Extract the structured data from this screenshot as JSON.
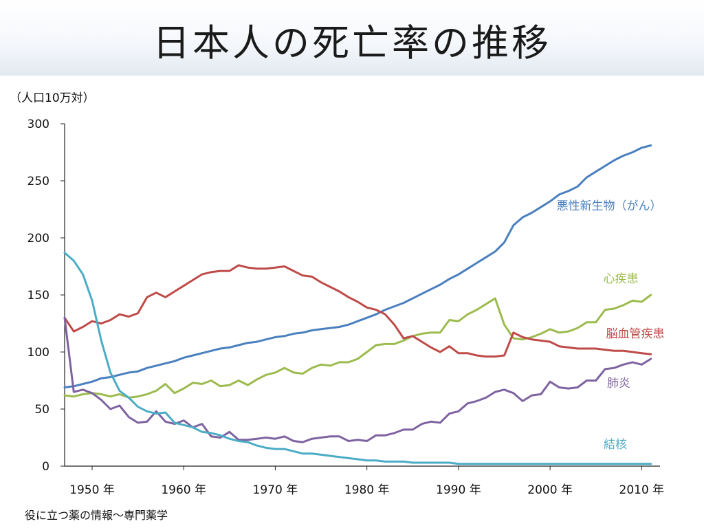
{
  "title": "日本人の死亡率の推移",
  "unit_label": "（人口10万対）",
  "source": "役に立つ薬の情報～専門薬学",
  "chart_data": {
    "type": "line",
    "title": "日本人の死亡率の推移",
    "ylabel": "（人口10万対）",
    "xlabel": "",
    "xlim": [
      1947,
      2012
    ],
    "ylim": [
      0,
      300
    ],
    "grid": false,
    "y_ticks": [
      "0",
      "50",
      "100",
      "150",
      "200",
      "250",
      "300"
    ],
    "x_ticks": [
      {
        "year": 1950,
        "label": "1950 年"
      },
      {
        "year": 1960,
        "label": "1960 年"
      },
      {
        "year": 1970,
        "label": "1970 年"
      },
      {
        "year": 1980,
        "label": "1980 年"
      },
      {
        "year": 1990,
        "label": "1990 年"
      },
      {
        "year": 2000,
        "label": "2000 年"
      },
      {
        "year": 2010,
        "label": "2010 年"
      }
    ],
    "x": [
      1947,
      1948,
      1949,
      1950,
      1951,
      1952,
      1953,
      1954,
      1955,
      1956,
      1957,
      1958,
      1959,
      1960,
      1961,
      1962,
      1963,
      1964,
      1965,
      1966,
      1967,
      1968,
      1969,
      1970,
      1971,
      1972,
      1973,
      1974,
      1975,
      1976,
      1977,
      1978,
      1979,
      1980,
      1981,
      1982,
      1983,
      1984,
      1985,
      1986,
      1987,
      1988,
      1989,
      1990,
      1991,
      1992,
      1993,
      1994,
      1995,
      1996,
      1997,
      1998,
      1999,
      2000,
      2001,
      2002,
      2003,
      2004,
      2005,
      2006,
      2007,
      2008,
      2009,
      2010,
      2011
    ],
    "series": [
      {
        "name": "悪性新生物（がん）",
        "color": "#4a7fbf",
        "values": [
          69,
          70,
          72,
          74,
          77,
          78,
          80,
          82,
          83,
          86,
          88,
          90,
          92,
          95,
          97,
          99,
          101,
          103,
          104,
          106,
          108,
          109,
          111,
          113,
          114,
          116,
          117,
          119,
          120,
          121,
          122,
          124,
          127,
          130,
          133,
          137,
          140,
          143,
          147,
          151,
          155,
          159,
          164,
          168,
          173,
          178,
          183,
          188,
          196,
          211,
          218,
          222,
          227,
          232,
          238,
          241,
          245,
          253,
          258,
          263,
          268,
          272,
          275,
          279,
          281
        ]
      },
      {
        "name": "心疾患",
        "color": "#9cbb4e",
        "values": [
          62,
          61,
          63,
          64,
          63,
          61,
          63,
          60,
          61,
          63,
          66,
          72,
          64,
          68,
          73,
          72,
          75,
          70,
          71,
          75,
          71,
          76,
          80,
          82,
          86,
          82,
          81,
          86,
          89,
          88,
          91,
          91,
          94,
          100,
          106,
          107,
          107,
          110,
          114,
          116,
          117,
          117,
          128,
          127,
          133,
          137,
          142,
          147,
          124,
          112,
          111,
          113,
          116,
          120,
          117,
          118,
          121,
          126,
          126,
          137,
          138,
          141,
          145,
          144,
          150
        ]
      },
      {
        "name": "脳血管疾患",
        "color": "#be4b48",
        "values": [
          130,
          118,
          122,
          127,
          125,
          128,
          133,
          131,
          134,
          148,
          152,
          148,
          153,
          158,
          163,
          168,
          170,
          171,
          171,
          176,
          174,
          173,
          173,
          174,
          175,
          171,
          167,
          166,
          161,
          157,
          153,
          148,
          144,
          139,
          137,
          133,
          124,
          112,
          114,
          109,
          104,
          100,
          105,
          99,
          99,
          97,
          96,
          96,
          97,
          117,
          113,
          111,
          110,
          109,
          105,
          104,
          103,
          103,
          103,
          102,
          101,
          101,
          100,
          99,
          98
        ]
      },
      {
        "name": "肺炎",
        "color": "#7e63a0",
        "values": [
          130,
          65,
          67,
          64,
          58,
          50,
          53,
          43,
          38,
          39,
          48,
          39,
          37,
          40,
          34,
          37,
          26,
          25,
          30,
          23,
          23,
          24,
          25,
          24,
          26,
          22,
          21,
          24,
          25,
          26,
          26,
          22,
          23,
          22,
          27,
          27,
          29,
          32,
          32,
          37,
          39,
          38,
          46,
          48,
          55,
          57,
          60,
          65,
          67,
          64,
          57,
          62,
          63,
          74,
          69,
          68,
          69,
          75,
          75,
          85,
          86,
          89,
          91,
          89,
          94
        ]
      },
      {
        "name": "結核",
        "color": "#4bacc6",
        "values": [
          187,
          180,
          168,
          145,
          110,
          82,
          66,
          60,
          52,
          48,
          46,
          47,
          38,
          36,
          34,
          30,
          29,
          27,
          24,
          22,
          21,
          18,
          16,
          15,
          15,
          13,
          11,
          11,
          10,
          9,
          8,
          7,
          6,
          5,
          5,
          4,
          4,
          4,
          3,
          3,
          3,
          3,
          3,
          2,
          2,
          2,
          2,
          2,
          2,
          2,
          2,
          2,
          2,
          2,
          2,
          2,
          2,
          2,
          2,
          2,
          2,
          2,
          2,
          2,
          2
        ]
      }
    ]
  }
}
